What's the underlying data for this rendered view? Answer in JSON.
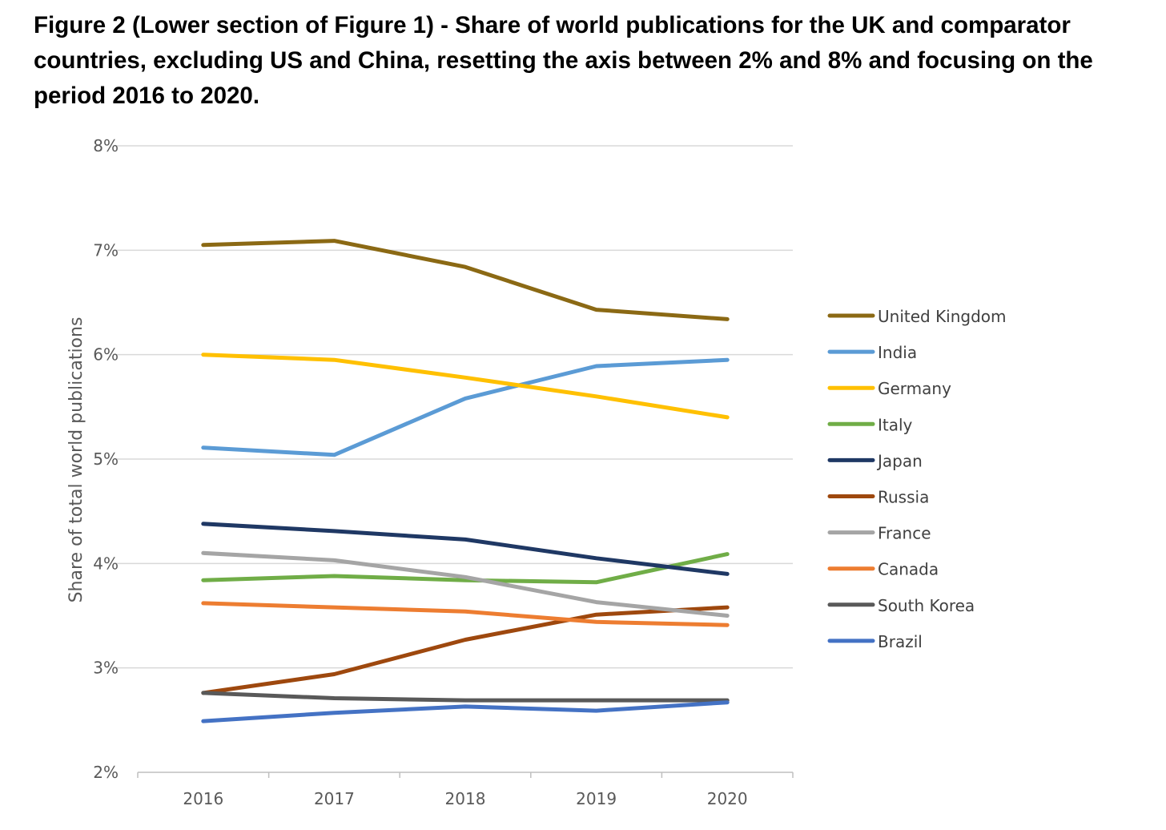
{
  "title": "Figure 2 (Lower section of Figure 1) - Share of world publications for the UK and comparator countries, excluding US and China, resetting the axis between 2% and 8% and focusing on the period 2016 to 2020.",
  "chart_data": {
    "type": "line",
    "x": [
      "2016",
      "2017",
      "2018",
      "2019",
      "2020"
    ],
    "ylabel": "Share of total world publications",
    "xlabel": "",
    "ylim": [
      2,
      8
    ],
    "y_ticks": [
      2,
      3,
      4,
      5,
      6,
      7,
      8
    ],
    "y_tick_labels": [
      "2%",
      "3%",
      "4%",
      "5%",
      "6%",
      "7%",
      "8%"
    ],
    "grid": true,
    "legend_position": "right",
    "series": [
      {
        "name": "United Kingdom",
        "color": "#8B6914",
        "values": [
          7.05,
          7.09,
          6.84,
          6.43,
          6.34
        ]
      },
      {
        "name": "India",
        "color": "#5B9BD5",
        "values": [
          5.11,
          5.04,
          5.58,
          5.89,
          5.95
        ]
      },
      {
        "name": "Germany",
        "color": "#FFC000",
        "values": [
          6.0,
          5.95,
          5.78,
          5.6,
          5.4
        ]
      },
      {
        "name": "Italy",
        "color": "#70AD47",
        "values": [
          3.84,
          3.88,
          3.84,
          3.82,
          4.09
        ]
      },
      {
        "name": "Japan",
        "color": "#1F3864",
        "values": [
          4.38,
          4.31,
          4.23,
          4.05,
          3.9
        ]
      },
      {
        "name": "Russia",
        "color": "#9E480E",
        "values": [
          2.76,
          2.94,
          3.27,
          3.51,
          3.58
        ]
      },
      {
        "name": "France",
        "color": "#A5A5A5",
        "values": [
          4.1,
          4.03,
          3.87,
          3.63,
          3.5
        ]
      },
      {
        "name": "Canada",
        "color": "#ED7D31",
        "values": [
          3.62,
          3.58,
          3.54,
          3.44,
          3.41
        ]
      },
      {
        "name": "South Korea",
        "color": "#595959",
        "values": [
          2.76,
          2.71,
          2.69,
          2.69,
          2.69
        ]
      },
      {
        "name": "Brazil",
        "color": "#4472C4",
        "values": [
          2.49,
          2.57,
          2.63,
          2.59,
          2.67
        ]
      }
    ]
  }
}
